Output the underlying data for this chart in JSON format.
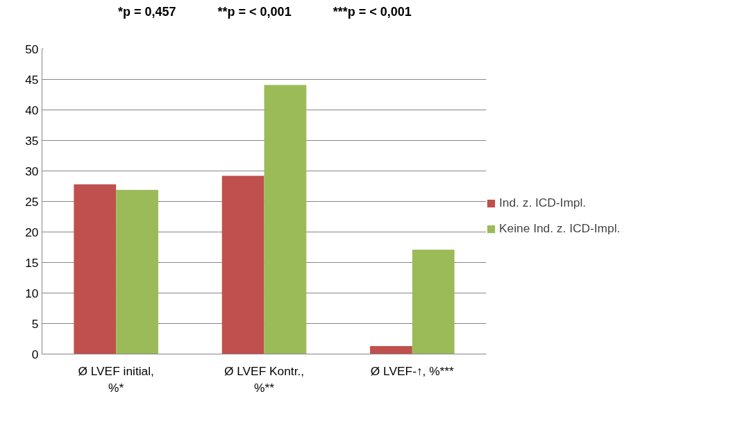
{
  "chart_data": {
    "type": "bar",
    "categories": [
      "Ø LVEF initial, %*",
      "Ø LVEF Kontr., %**",
      "Ø LVEF-↑, %***"
    ],
    "series": [
      {
        "name": "Ind. z. ICD-Impl.",
        "color": "#c0504d",
        "values": [
          27.8,
          29.2,
          1.3
        ]
      },
      {
        "name": "Keine Ind. z. ICD-Impl.",
        "color": "#9bbb59",
        "values": [
          26.9,
          44.1,
          17.1
        ]
      }
    ],
    "ylim": [
      0,
      50
    ],
    "yticks": [
      0,
      5,
      10,
      15,
      20,
      25,
      30,
      35,
      40,
      45,
      50
    ],
    "grid": "y",
    "legend": "right",
    "annotations": [
      "*p  = 0,457",
      "**p = < 0,001",
      "***p = < 0,001"
    ]
  }
}
